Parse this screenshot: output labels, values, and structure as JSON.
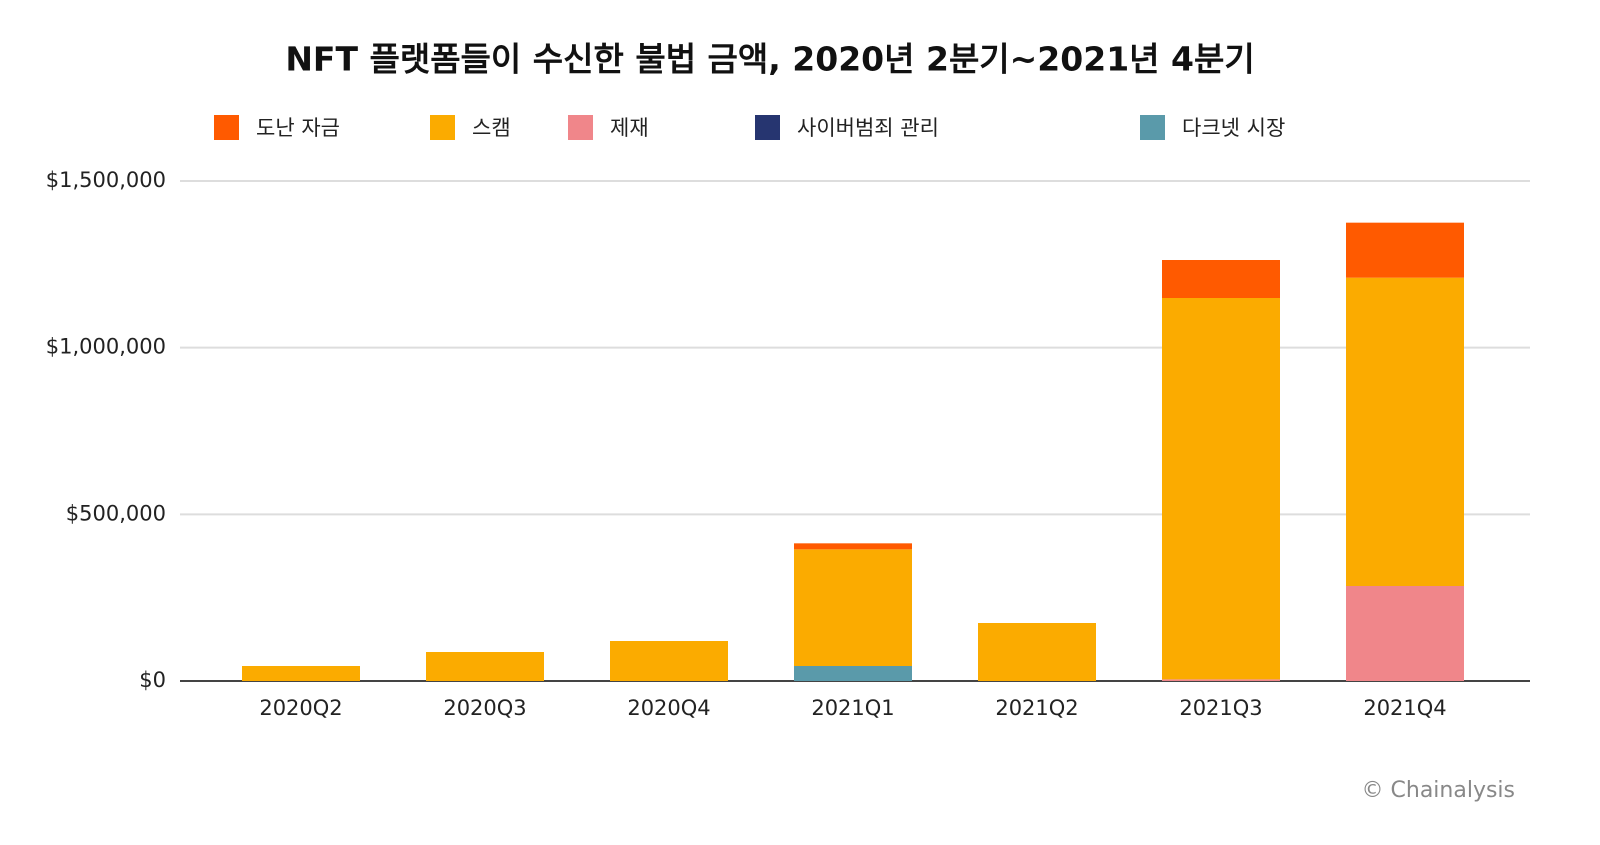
{
  "chart_data": {
    "type": "stacked_bar",
    "title": "NFT 플랫폼들이 수신한 불법 금액, 2020년 2분기~2021년 4분기",
    "source": "© Chainalysis",
    "categories": [
      "2020Q2",
      "2020Q3",
      "2020Q4",
      "2021Q1",
      "2021Q2",
      "2021Q3",
      "2021Q4"
    ],
    "series": [
      {
        "name": "도난 자금",
        "color": "#ff5a00",
        "values": [
          0,
          0,
          0,
          18000,
          0,
          114000,
          165000
        ]
      },
      {
        "name": "스캠",
        "color": "#fbab00",
        "values": [
          45000,
          87000,
          120000,
          350000,
          174000,
          1144000,
          925000
        ]
      },
      {
        "name": "제재",
        "color": "#f0868a",
        "values": [
          0,
          0,
          0,
          0,
          0,
          5000,
          285000
        ]
      },
      {
        "name": "사이버범죄 관리",
        "color": "#263570",
        "values": [
          0,
          0,
          0,
          0,
          0,
          0,
          0
        ]
      },
      {
        "name": "다크넷 시장",
        "color": "#5a9aaa",
        "values": [
          0,
          0,
          0,
          45000,
          0,
          0,
          0
        ]
      }
    ],
    "ylim": [
      0,
      1500000
    ],
    "yticks": [
      {
        "value": 0,
        "label": "$0"
      },
      {
        "value": 500000,
        "label": "$500,000"
      },
      {
        "value": 1000000,
        "label": "$1,000,000"
      },
      {
        "value": 1500000,
        "label": "$1,500,000"
      }
    ],
    "grid": true
  }
}
